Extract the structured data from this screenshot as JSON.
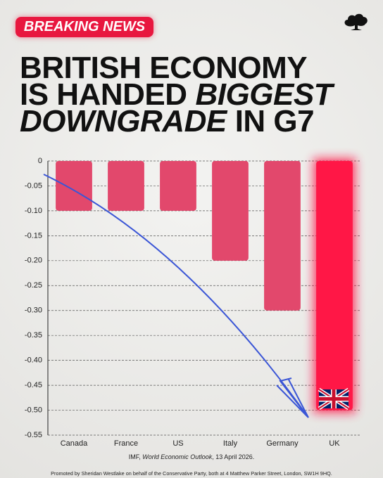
{
  "badge": "BREAKING NEWS",
  "chart_data": {
    "type": "bar",
    "title": [
      [
        {
          "text": "BRITISH ECONOMY",
          "italic": false
        }
      ],
      [
        {
          "text": "IS HANDED",
          "italic": false
        },
        {
          "text": "BIGGEST",
          "italic": true
        }
      ],
      [
        {
          "text": "DOWNGRADE",
          "italic": true
        },
        {
          "text": "IN G7",
          "italic": false
        }
      ]
    ],
    "categories": [
      "Canada",
      "France",
      "US",
      "Italy",
      "Germany",
      "UK"
    ],
    "values": [
      -0.1,
      -0.1,
      -0.1,
      -0.2,
      -0.3,
      -0.5
    ],
    "colors": [
      "#e2486c",
      "#e2486c",
      "#e2486c",
      "#e2486c",
      "#e2486c",
      "#ff1746"
    ],
    "ylim": [
      0,
      -0.55
    ],
    "yticks": [
      0,
      -0.05,
      {
        "value": -0.1,
        "label": "-0.10"
      },
      -0.15,
      {
        "value": -0.2,
        "label": "-0.20"
      },
      -0.25,
      {
        "value": -0.3,
        "label": "-0.30"
      },
      -0.35,
      {
        "value": -0.4,
        "label": "-0.40"
      },
      -0.45,
      {
        "value": -0.5,
        "label": "-0.50"
      },
      -0.55
    ],
    "grid": true,
    "source": [
      {
        "text": "IMF, ",
        "italic": false
      },
      {
        "text": "World Economic Outlook",
        "italic": true
      },
      {
        "text": ", 13 April 2026.",
        "italic": false
      }
    ]
  },
  "footer": "Promoted by Sheridan Westlake on behalf of the Conservative Party, both at 4 Matthew Parker Street, London, SW1H 9HQ."
}
